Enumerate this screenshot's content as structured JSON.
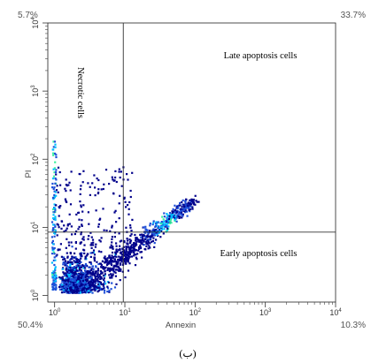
{
  "chart_data": {
    "type": "scatter",
    "title": "",
    "xlabel": "Annexin",
    "ylabel": "PI",
    "x_scale": "log",
    "y_scale": "log",
    "xlim": [
      0.8,
      10000
    ],
    "ylim": [
      0.8,
      10000
    ],
    "x_ticks": [
      {
        "base": "10",
        "exp": "0",
        "value": 1
      },
      {
        "base": "10",
        "exp": "1",
        "value": 10
      },
      {
        "base": "10",
        "exp": "2",
        "value": 100
      },
      {
        "base": "10",
        "exp": "3",
        "value": 1000
      },
      {
        "base": "10",
        "exp": "4",
        "value": 10000
      }
    ],
    "y_ticks": [
      {
        "base": "10",
        "exp": "0",
        "value": 1
      },
      {
        "base": "10",
        "exp": "1",
        "value": 10
      },
      {
        "base": "10",
        "exp": "2",
        "value": 100
      },
      {
        "base": "10",
        "exp": "3",
        "value": 1000
      },
      {
        "base": "10",
        "exp": "4",
        "value": 10000
      }
    ],
    "quadrant_gates": {
      "x": 9.5,
      "y": 8.5
    },
    "quadrant_labels": {
      "upper_left": "Necrotic cells",
      "upper_right": "Late apoptosis cells",
      "lower_right": "Early apoptosis cells"
    },
    "quadrant_percentages": {
      "upper_left": "5.7%",
      "upper_right": "33.7%",
      "lower_left": "50.4%",
      "lower_right": "10.3%"
    },
    "grid": false,
    "legend": "none",
    "population_colors": {
      "sparse": "#00008b",
      "medium": "#1e4fd8",
      "dense": "#00bfff",
      "core": "#3cf0a0"
    }
  },
  "caption": "(ب)"
}
